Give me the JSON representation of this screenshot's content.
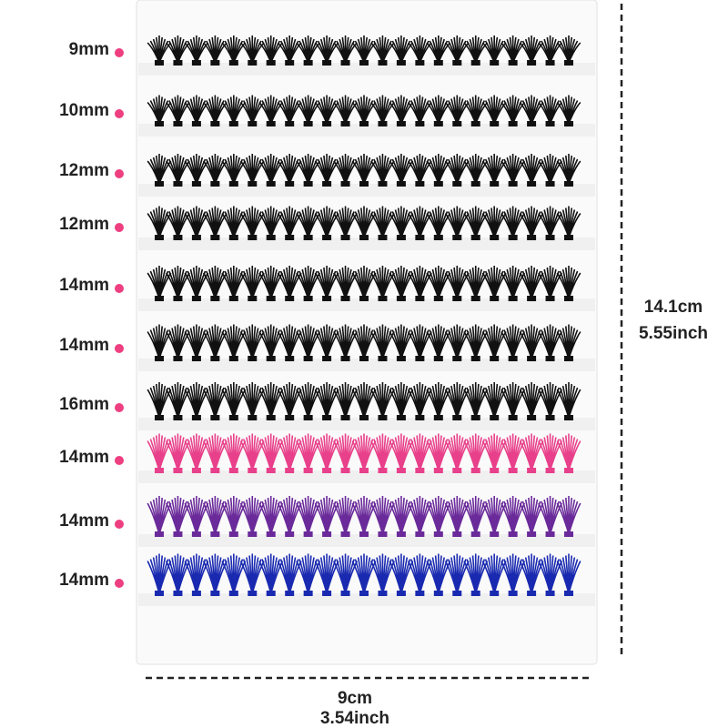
{
  "rows": [
    {
      "label": "9mm",
      "color": "#111111"
    },
    {
      "label": "10mm",
      "color": "#111111"
    },
    {
      "label": "12mm",
      "color": "#111111"
    },
    {
      "label": "12mm",
      "color": "#111111"
    },
    {
      "label": "14mm",
      "color": "#111111"
    },
    {
      "label": "14mm",
      "color": "#111111"
    },
    {
      "label": "16mm",
      "color": "#111111"
    },
    {
      "label": "14mm",
      "color": "#e8408a"
    },
    {
      "label": "14mm",
      "color": "#6a2a9a"
    },
    {
      "label": "14mm",
      "color": "#1a2ab0"
    }
  ],
  "height": {
    "cm": "14.1cm",
    "inch": "5.55inch"
  },
  "width": {
    "cm": "9cm",
    "inch": "3.54inch"
  }
}
